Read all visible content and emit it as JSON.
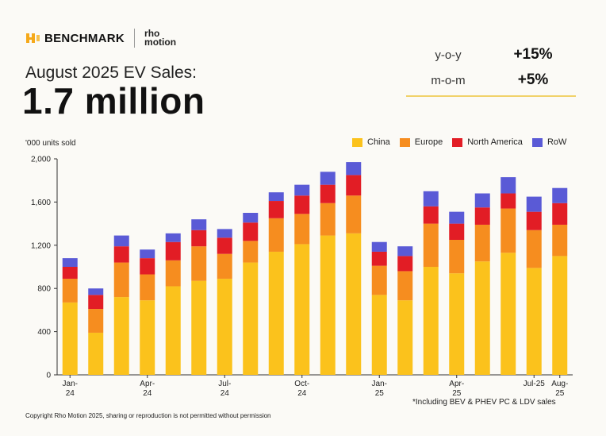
{
  "brand": {
    "benchmark": "BENCHMARK",
    "rho_line1": "rho",
    "rho_line2": "motion"
  },
  "header": {
    "subtitle": "August 2025 EV Sales:",
    "headline": "1.7 million"
  },
  "kpis": [
    {
      "label": "y-o-y",
      "value": "+15%"
    },
    {
      "label": "m-o-m",
      "value": "+5%"
    }
  ],
  "colors": {
    "China": "#fbc21c",
    "Europe": "#f68d1f",
    "North America": "#e21d25",
    "RoW": "#5a5ad6",
    "accent": "#f1d26a"
  },
  "chart_data": {
    "type": "bar",
    "stacked": true,
    "ylabel": "'000 units sold",
    "ylim": [
      0,
      2000
    ],
    "yticks": [
      "0",
      "400",
      "800",
      "1,200",
      "1,600",
      "2,000"
    ],
    "ytick_values": [
      0,
      400,
      800,
      1200,
      1600,
      2000
    ],
    "grid": false,
    "legend_position": "top-right",
    "categories": [
      "Jan-24",
      "Feb-24",
      "Mar-24",
      "Apr-24",
      "May-24",
      "Jun-24",
      "Jul-24",
      "Aug-24",
      "Sep-24",
      "Oct-24",
      "Nov-24",
      "Dec-24",
      "Jan-25",
      "Feb-25",
      "Mar-25",
      "Apr-25",
      "May-25",
      "Jun-25",
      "Jul-25",
      "Aug-25"
    ],
    "xtick_labels": [
      {
        "index": 0,
        "line1": "Jan-",
        "line2": "24"
      },
      {
        "index": 3,
        "line1": "Apr-",
        "line2": "24"
      },
      {
        "index": 6,
        "line1": "Jul-",
        "line2": "24"
      },
      {
        "index": 9,
        "line1": "Oct-",
        "line2": "24"
      },
      {
        "index": 12,
        "line1": "Jan-",
        "line2": "25"
      },
      {
        "index": 15,
        "line1": "Apr-",
        "line2": "25"
      },
      {
        "index": 18,
        "line1": "Jul-25",
        "line2": ""
      },
      {
        "index": 19,
        "line1": "Aug-",
        "line2": "25"
      }
    ],
    "series": [
      {
        "name": "China",
        "values": [
          670,
          390,
          720,
          690,
          820,
          870,
          890,
          1040,
          1140,
          1210,
          1290,
          1310,
          740,
          690,
          1000,
          940,
          1050,
          1130,
          990,
          1100
        ]
      },
      {
        "name": "Europe",
        "values": [
          220,
          220,
          320,
          240,
          240,
          320,
          230,
          200,
          310,
          280,
          300,
          350,
          270,
          270,
          400,
          310,
          340,
          410,
          350,
          290
        ]
      },
      {
        "name": "North America",
        "values": [
          110,
          130,
          150,
          150,
          170,
          150,
          150,
          170,
          160,
          170,
          170,
          190,
          130,
          140,
          160,
          150,
          160,
          140,
          170,
          200
        ]
      },
      {
        "name": "RoW",
        "values": [
          80,
          60,
          100,
          80,
          80,
          100,
          80,
          90,
          80,
          100,
          120,
          120,
          90,
          90,
          140,
          110,
          130,
          150,
          140,
          140
        ]
      }
    ]
  },
  "footnote": "*Including BEV & PHEV PC & LDV sales",
  "copyright": "Copyright Rho Motion 2025, sharing or reproduction is not permitted without permission"
}
